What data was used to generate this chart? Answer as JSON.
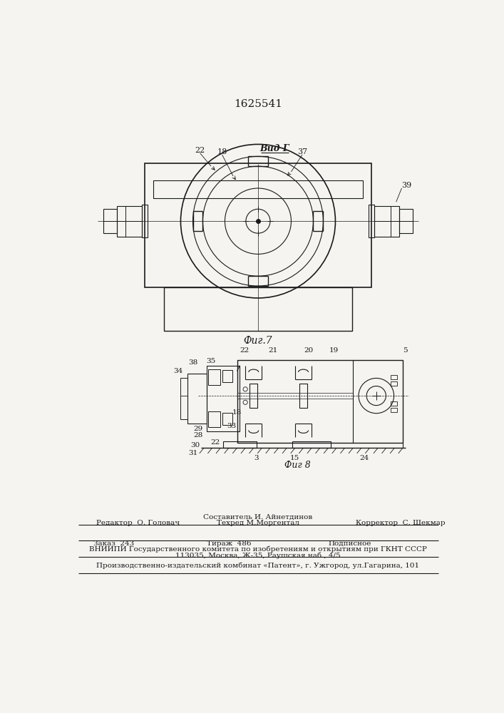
{
  "patent_number": "1625541",
  "bg_color": "#f5f4f1",
  "fig7_caption": "Фиг.7",
  "fig8_caption": "Фиг 8",
  "vid_g_label": "Вид Г",
  "editor_line": "Редактор  О. Головач",
  "compiler_line": "Составитель И. Айнетдинов",
  "techred_line": "Техред М.Моргентал",
  "corrector_line": "Корректор  С. Шекмар",
  "order_line": "Заказ  243",
  "tirazh_line": "Тираж  486",
  "podpisnoe_line": "Подписное",
  "vniip_line": "ВНИИПИ Государственного комитета по изобретениям и открытиям при ГКНТ СССР",
  "address_line": "113035, Москва, Ж-35, Раушская наб., 4/5",
  "factory_line": "Производственно-издательский комбинат «Патент», г. Ужгород, ул.Гагарина, 101"
}
